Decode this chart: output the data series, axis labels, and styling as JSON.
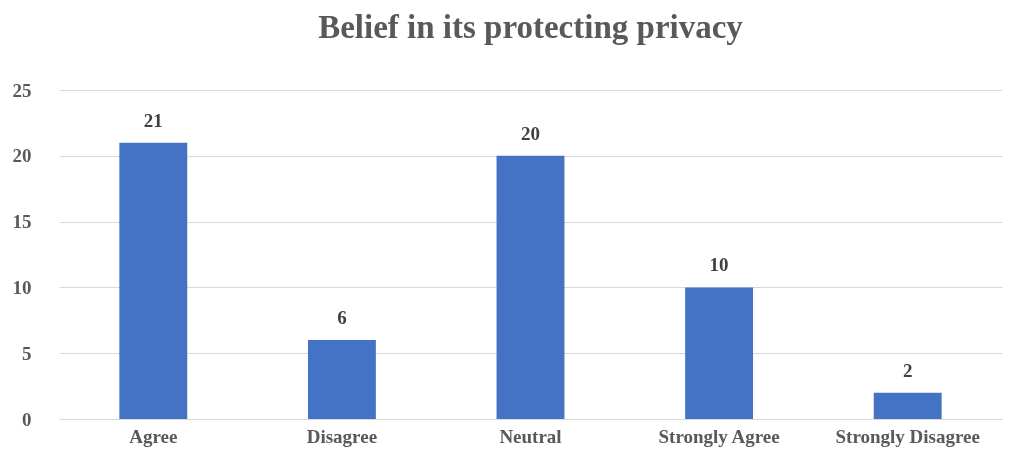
{
  "chart_data": {
    "type": "bar",
    "title": "Belief in its protecting privacy",
    "categories": [
      "Agree",
      "Disagree",
      "Neutral",
      "Strongly Agree",
      "Strongly Disagree"
    ],
    "values": [
      21,
      6,
      20,
      10,
      2
    ],
    "color": "#4472c4",
    "ylim": [
      0,
      25
    ],
    "yticks": [
      0,
      5,
      10,
      15,
      20,
      25
    ],
    "grid": "y",
    "data_labels": true
  }
}
